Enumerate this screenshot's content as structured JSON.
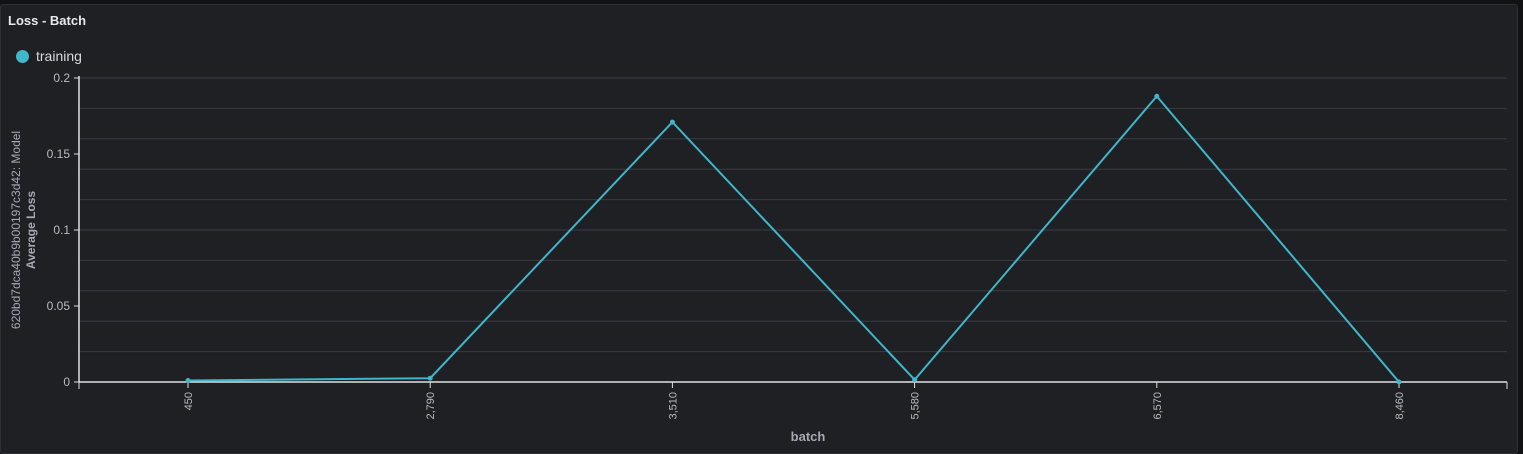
{
  "panel": {
    "title": "Loss - Batch"
  },
  "colors": {
    "background": "#1f2024",
    "series_training": "#3fb6c9",
    "grid": "#3a3c42",
    "axis": "#e0e1e4",
    "tick_text": "#b8bac0",
    "label_text": "#a6a9b1"
  },
  "chart_data": {
    "type": "line",
    "title": "Loss - Batch",
    "xlabel": "batch",
    "ylabel": "Average Loss",
    "ylabel_secondary": "620bd7dca40b9b00197c3d42: Model",
    "x_type": "category",
    "categories": [
      "450",
      "2,790",
      "3,510",
      "5,580",
      "6,570",
      "8,460"
    ],
    "ylim": [
      0,
      0.2
    ],
    "yticks": [
      0,
      0.05,
      0.1,
      0.15,
      0.2
    ],
    "ytick_labels": [
      "0",
      "0.05",
      "0.1",
      "0.15",
      "0.2"
    ],
    "grid": true,
    "legend_position": "top-left",
    "series": [
      {
        "name": "training",
        "color": "#3fb6c9",
        "values": [
          0.001,
          0.0025,
          0.171,
          0.0015,
          0.188,
          0.0
        ]
      }
    ]
  }
}
